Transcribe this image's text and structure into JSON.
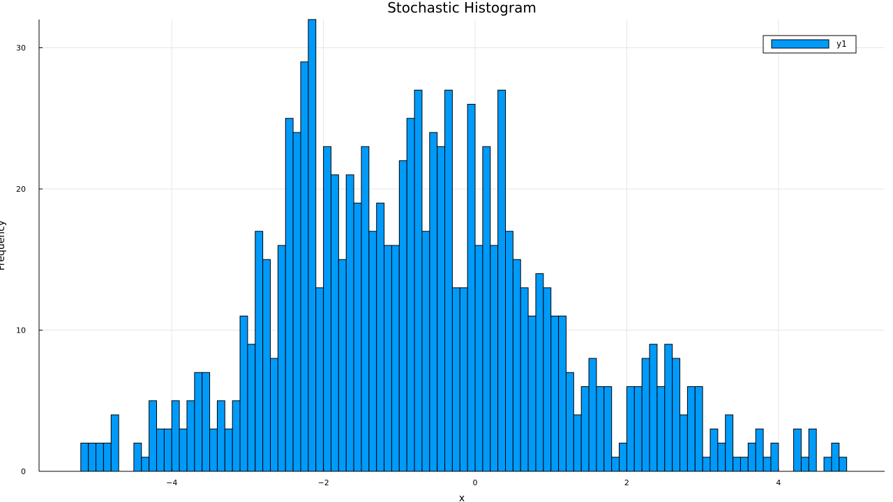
{
  "chart_data": {
    "type": "bar",
    "title": "Stochastic Histogram",
    "xlabel": "x",
    "ylabel": "Frequency",
    "xlim": [
      -5.75,
      5.4
    ],
    "ylim": [
      0,
      32
    ],
    "xticks": [
      -4,
      -2,
      0,
      2,
      4
    ],
    "xtick_labels": [
      "−4",
      "−2",
      "0",
      "2",
      "4"
    ],
    "yticks": [
      0,
      10,
      20,
      30
    ],
    "ytick_labels": [
      "0",
      "10",
      "20",
      "30"
    ],
    "grid": true,
    "legend_position": "top-right",
    "bin_start": -5.2,
    "bin_width": 0.1,
    "series": [
      {
        "name": "y1",
        "color": "#009af9",
        "values": [
          2,
          2,
          2,
          2,
          4,
          0,
          0,
          2,
          1,
          5,
          3,
          3,
          5,
          3,
          5,
          7,
          7,
          3,
          5,
          3,
          5,
          11,
          9,
          17,
          15,
          8,
          16,
          25,
          24,
          29,
          32,
          13,
          23,
          21,
          15,
          21,
          19,
          23,
          17,
          19,
          16,
          16,
          22,
          25,
          27,
          17,
          24,
          23,
          27,
          13,
          13,
          26,
          16,
          23,
          16,
          27,
          17,
          15,
          13,
          11,
          14,
          13,
          11,
          11,
          7,
          4,
          6,
          8,
          6,
          6,
          1,
          2,
          6,
          6,
          8,
          9,
          6,
          9,
          8,
          4,
          6,
          6,
          1,
          3,
          2,
          4,
          1,
          1,
          2,
          3,
          1,
          2,
          0,
          0,
          3,
          1,
          3,
          0,
          1,
          2,
          1
        ]
      }
    ]
  }
}
